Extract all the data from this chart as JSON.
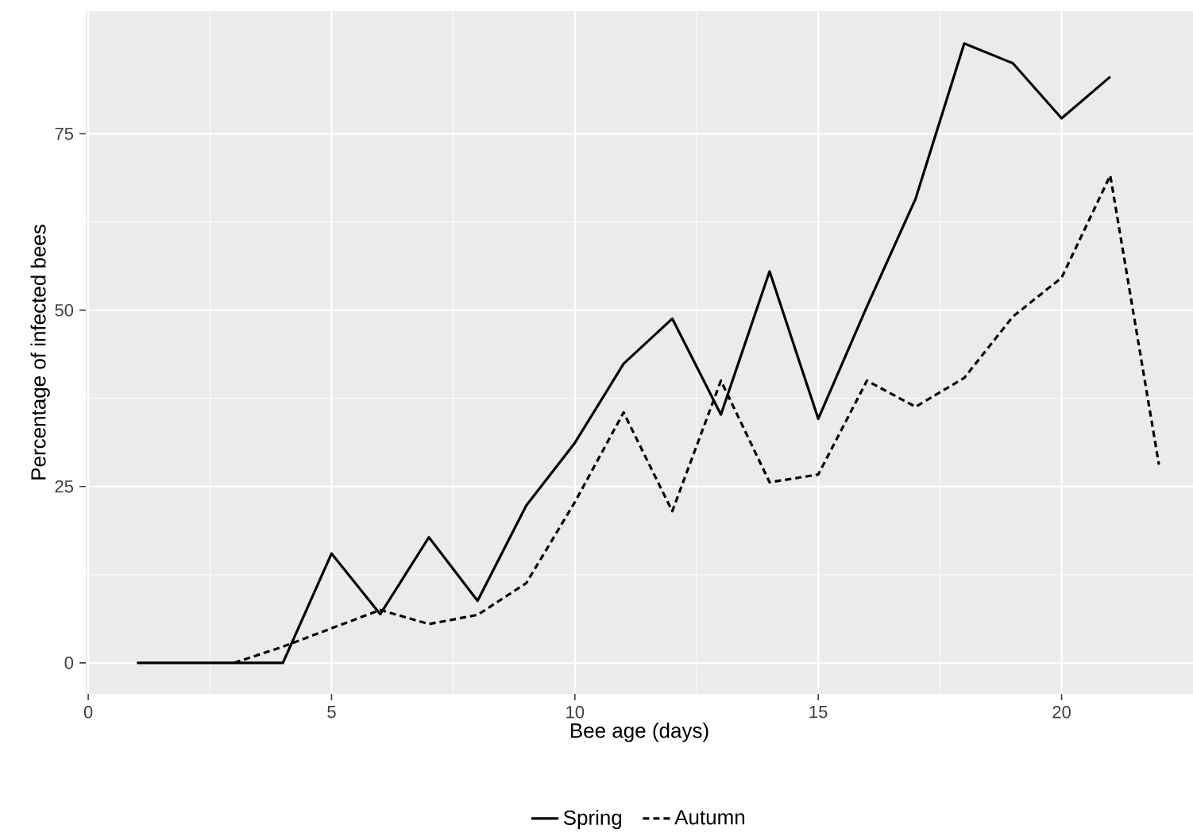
{
  "chart_data": {
    "type": "line",
    "xlabel": "Bee age (days)",
    "ylabel": "Percentage of infected bees",
    "xlim": [
      -0.05,
      22.7
    ],
    "ylim": [
      -4.4,
      92.4
    ],
    "xticks": [
      0,
      5,
      10,
      15,
      20
    ],
    "yticks": [
      0,
      25,
      50,
      75
    ],
    "grid": true,
    "legend": "bottom",
    "series": [
      {
        "name": "Spring",
        "color": "#000000",
        "line_style": "solid",
        "x": [
          1,
          2,
          3,
          4,
          5,
          6,
          7,
          8,
          9,
          10,
          11,
          12,
          13,
          14,
          15,
          16,
          17,
          18,
          19,
          20,
          21
        ],
        "values": [
          0,
          0,
          0,
          0,
          15.5,
          6.9,
          17.8,
          8.8,
          22.3,
          31.2,
          42.4,
          48.8,
          35.2,
          55.5,
          34.6,
          50.5,
          65.8,
          87.8,
          85.0,
          77.2,
          83.1
        ]
      },
      {
        "name": "Autumn",
        "color": "#000000",
        "line_style": "dashed",
        "x": [
          3,
          4,
          5,
          6,
          7,
          8,
          9,
          10,
          11,
          12,
          13,
          14,
          15,
          16,
          17,
          18,
          19,
          20,
          21,
          22
        ],
        "values": [
          0,
          2.3,
          4.9,
          7.5,
          5.5,
          6.8,
          11.3,
          22.8,
          35.5,
          21.5,
          40.0,
          25.6,
          26.7,
          40.0,
          36.3,
          40.4,
          49.1,
          54.6,
          69.1,
          28.1
        ]
      }
    ]
  }
}
